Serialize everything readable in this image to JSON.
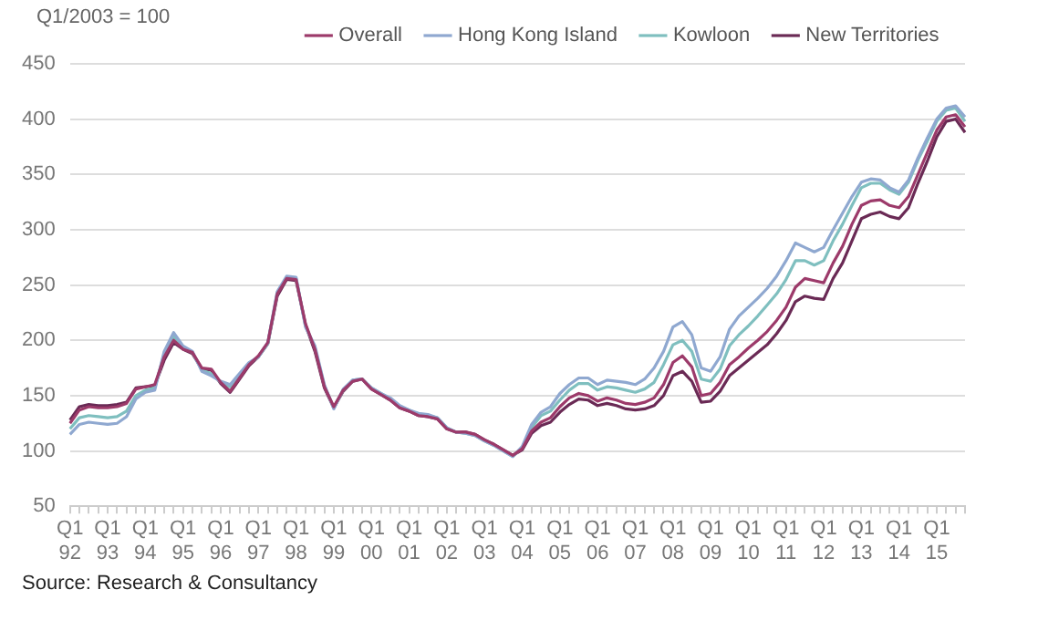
{
  "chart_data": {
    "type": "line",
    "ylabel": "Q1/2003 = 100",
    "categories": [
      "Q1 92",
      null,
      null,
      null,
      "Q1 93",
      null,
      null,
      null,
      "Q1 94",
      null,
      null,
      null,
      "Q1 95",
      null,
      null,
      null,
      "Q1 96",
      null,
      null,
      null,
      "Q1 97",
      null,
      null,
      null,
      "Q1 98",
      null,
      null,
      null,
      "Q1 99",
      null,
      null,
      null,
      "Q1 00",
      null,
      null,
      null,
      "Q1 01",
      null,
      null,
      null,
      "Q1 02",
      null,
      null,
      null,
      "Q1 03",
      null,
      null,
      null,
      "Q1 04",
      null,
      null,
      null,
      "Q1 05",
      null,
      null,
      null,
      "Q1 06",
      null,
      null,
      null,
      "Q1 07",
      null,
      null,
      null,
      "Q1 08",
      null,
      null,
      null,
      "Q1 09",
      null,
      null,
      null,
      "Q1 10",
      null,
      null,
      null,
      "Q1 11",
      null,
      null,
      null,
      "Q1 12",
      null,
      null,
      null,
      "Q1 13",
      null,
      null,
      null,
      "Q1 14",
      null,
      null,
      null,
      "Q1 15",
      null,
      null,
      null
    ],
    "series": [
      {
        "name": "Overall",
        "color": "#9c3a6a",
        "values": [
          125,
          137,
          140,
          139,
          139,
          140,
          143,
          156,
          158,
          160,
          185,
          200,
          192,
          189,
          175,
          174,
          162,
          154,
          166,
          178,
          186,
          198,
          242,
          256,
          255,
          215,
          192,
          158,
          140,
          155,
          163,
          165,
          156,
          151,
          146,
          139,
          136,
          132,
          131,
          129,
          120,
          117,
          117,
          115,
          110,
          106,
          101,
          96,
          102,
          118,
          126,
          130,
          140,
          148,
          152,
          150,
          145,
          148,
          146,
          143,
          142,
          144,
          148,
          160,
          180,
          186,
          176,
          150,
          152,
          162,
          178,
          185,
          193,
          200,
          208,
          218,
          230,
          248,
          256,
          254,
          252,
          270,
          285,
          305,
          322,
          326,
          327,
          322,
          320,
          330,
          350,
          370,
          390,
          402,
          404,
          393
        ]
      },
      {
        "name": "Hong Kong Island",
        "color": "#8fa8d0",
        "values": [
          115,
          124,
          126,
          125,
          124,
          125,
          131,
          147,
          153,
          155,
          190,
          207,
          195,
          190,
          172,
          168,
          163,
          160,
          170,
          180,
          185,
          198,
          244,
          258,
          257,
          212,
          195,
          160,
          138,
          156,
          164,
          165,
          157,
          152,
          148,
          141,
          137,
          134,
          133,
          130,
          121,
          117,
          116,
          114,
          109,
          105,
          100,
          95,
          104,
          124,
          135,
          140,
          152,
          160,
          166,
          166,
          160,
          164,
          163,
          162,
          160,
          165,
          175,
          190,
          212,
          217,
          205,
          175,
          172,
          185,
          210,
          222,
          230,
          238,
          247,
          258,
          272,
          288,
          284,
          280,
          284,
          300,
          315,
          330,
          343,
          346,
          345,
          338,
          334,
          345,
          365,
          383,
          400,
          410,
          412,
          402
        ]
      },
      {
        "name": "Kowloon",
        "color": "#7fbfbf",
        "values": [
          120,
          130,
          132,
          131,
          130,
          131,
          136,
          150,
          155,
          157,
          188,
          204,
          194,
          189,
          173,
          170,
          162,
          158,
          168,
          179,
          185,
          197,
          243,
          257,
          256,
          213,
          193,
          159,
          139,
          155,
          164,
          165,
          157,
          152,
          147,
          140,
          137,
          133,
          132,
          130,
          121,
          117,
          116,
          114,
          109,
          105,
          100,
          95,
          103,
          121,
          132,
          136,
          146,
          155,
          161,
          161,
          155,
          158,
          157,
          155,
          153,
          156,
          162,
          178,
          196,
          200,
          190,
          165,
          163,
          174,
          195,
          205,
          213,
          222,
          232,
          242,
          255,
          272,
          272,
          268,
          272,
          290,
          305,
          322,
          338,
          342,
          342,
          336,
          332,
          343,
          363,
          380,
          398,
          408,
          410,
          398
        ]
      },
      {
        "name": "New Territories",
        "color": "#6a2a55",
        "values": [
          128,
          140,
          142,
          141,
          141,
          142,
          144,
          157,
          158,
          159,
          182,
          198,
          192,
          188,
          174,
          173,
          161,
          153,
          165,
          177,
          185,
          197,
          240,
          255,
          254,
          214,
          190,
          157,
          139,
          154,
          163,
          165,
          156,
          151,
          146,
          139,
          136,
          132,
          131,
          129,
          120,
          117,
          117,
          115,
          110,
          106,
          101,
          96,
          101,
          116,
          123,
          126,
          135,
          142,
          147,
          146,
          141,
          143,
          141,
          138,
          137,
          138,
          141,
          150,
          168,
          172,
          163,
          144,
          145,
          154,
          168,
          175,
          182,
          189,
          196,
          206,
          218,
          235,
          240,
          238,
          237,
          256,
          270,
          290,
          310,
          314,
          316,
          312,
          310,
          320,
          342,
          362,
          384,
          398,
          400,
          388
        ]
      }
    ],
    "ylim": [
      50,
      450
    ],
    "yticks": [
      50,
      100,
      150,
      200,
      250,
      300,
      350,
      400,
      450
    ],
    "grid": "y",
    "legend": "top right",
    "marker": "none",
    "line_style": "solid",
    "annotations": [
      "Source: Research & Consultancy"
    ]
  }
}
